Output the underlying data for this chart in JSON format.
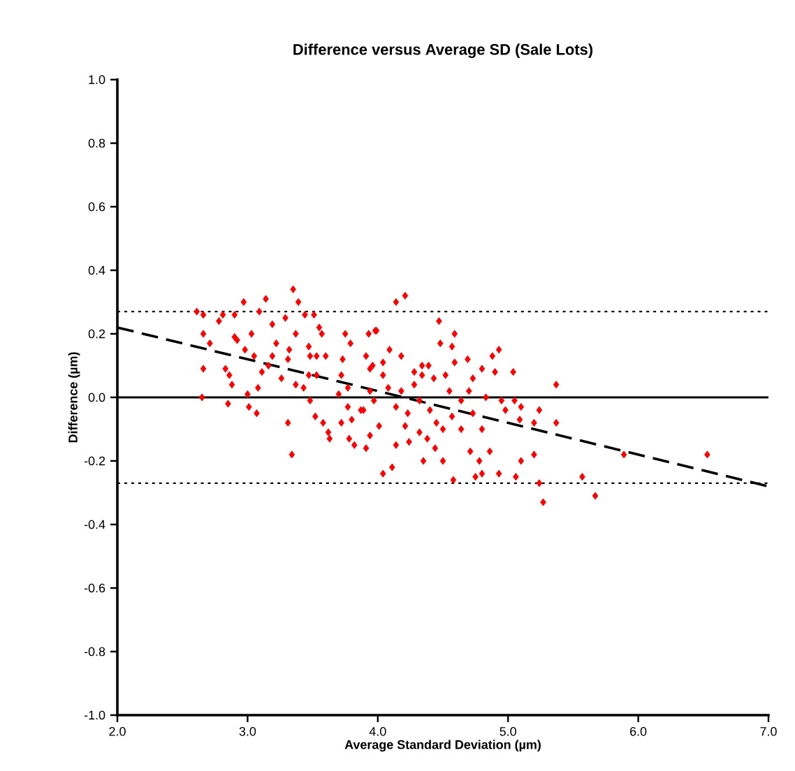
{
  "chart_data": {
    "type": "scatter",
    "title": "Difference versus Average SD (Sale Lots)",
    "xlabel": "Average Standard Deviation (µm)",
    "ylabel": "Difference (µm)",
    "xlim": [
      2,
      7
    ],
    "ylim": [
      -1,
      1
    ],
    "xticks": [
      {
        "value": 2,
        "label": "2.0"
      },
      {
        "value": 3,
        "label": "3.0"
      },
      {
        "value": 4,
        "label": "4.0"
      },
      {
        "value": 5,
        "label": "5.0"
      },
      {
        "value": 6,
        "label": "6.0"
      },
      {
        "value": 7,
        "label": "7.0"
      }
    ],
    "yticks": [
      {
        "value": -1,
        "label": "-1.0"
      },
      {
        "value": -0.8,
        "label": "-0.8"
      },
      {
        "value": -0.6,
        "label": "-0.6"
      },
      {
        "value": -0.4,
        "label": "-0.4"
      },
      {
        "value": -0.2,
        "label": "-0.2"
      },
      {
        "value": 0,
        "label": "0.0"
      },
      {
        "value": 0.2,
        "label": "0.2"
      },
      {
        "value": 0.4,
        "label": "0.4"
      },
      {
        "value": 0.6,
        "label": "0.6"
      },
      {
        "value": 0.8,
        "label": "0.8"
      },
      {
        "value": 1,
        "label": "1.0"
      }
    ],
    "ref_lines": [
      {
        "axis": "y",
        "value": 0,
        "color": "#000000",
        "line_style": "solid"
      },
      {
        "axis": "y",
        "value": 0.27,
        "color": "#000000",
        "line_style": "dotted"
      },
      {
        "axis": "y",
        "value": -0.27,
        "color": "#000000",
        "line_style": "dotted"
      }
    ],
    "series": [
      {
        "color": "#ff0000",
        "marker": "diamond",
        "x": [
          2.61,
          2.66,
          2.66,
          2.71,
          2.66,
          2.65,
          2.78,
          2.81,
          2.9,
          2.97,
          2.83,
          2.86,
          2.88,
          2.85,
          2.9,
          2.92,
          3.01,
          3.07,
          3.0,
          3.08,
          3.14,
          3.09,
          3.03,
          2.98,
          3.05,
          3.11,
          3.19,
          3.22,
          3.26,
          3.19,
          3.16,
          3.35,
          3.39,
          3.29,
          3.37,
          3.32,
          3.31,
          3.37,
          3.31,
          3.34,
          3.44,
          3.51,
          3.55,
          3.57,
          3.47,
          3.48,
          3.47,
          3.43,
          3.48,
          3.53,
          3.53,
          3.52,
          3.58,
          3.62,
          3.63,
          3.75,
          3.79,
          3.73,
          3.72,
          3.77,
          3.7,
          3.77,
          3.72,
          3.8,
          3.78,
          3.82,
          3.91,
          3.94,
          3.93,
          3.91,
          3.98,
          3.96,
          3.94,
          3.89,
          3.6,
          4.14,
          4.21,
          4.47,
          3.99,
          4.09,
          4.18,
          4.04,
          3.94,
          4.04,
          4.28,
          4.34,
          4.39,
          4.48,
          4.59,
          4.57,
          4.59,
          4.52,
          4.43,
          4.69,
          4.8,
          4.88,
          4.93,
          4.9,
          5.04,
          4.73,
          4.55,
          4.7,
          4.83,
          5.37,
          4.95,
          5.05,
          4.98,
          5.1,
          5.24,
          5.2,
          5.37,
          5.09,
          4.8,
          4.73,
          4.64,
          4.57,
          4.45,
          4.4,
          4.5,
          4.64,
          4.32,
          4.38,
          4.44,
          4.5,
          4.35,
          4.71,
          4.86,
          4.78,
          4.8,
          4.75,
          4.93,
          5.06,
          5.1,
          5.2,
          5.24,
          4.58,
          4.04,
          4.11,
          4.24,
          4.14,
          4.01,
          4.21,
          4.14,
          4.23,
          4.32,
          4.18,
          4.08,
          3.97,
          3.87,
          4.34,
          4.28,
          5.89,
          6.53,
          5.57,
          5.67,
          5.27
        ],
        "values": [
          0.27,
          0.26,
          0.2,
          0.17,
          0.09,
          0.0,
          0.24,
          0.26,
          0.26,
          0.3,
          0.09,
          0.07,
          0.04,
          -0.02,
          0.19,
          0.18,
          -0.03,
          -0.05,
          0.01,
          0.03,
          0.31,
          0.27,
          0.2,
          0.15,
          0.13,
          0.08,
          0.23,
          0.17,
          0.06,
          0.13,
          0.1,
          0.34,
          0.3,
          0.25,
          0.2,
          0.15,
          0.12,
          0.04,
          -0.08,
          -0.18,
          0.26,
          0.26,
          0.22,
          0.2,
          0.16,
          0.13,
          0.07,
          0.03,
          -0.01,
          0.13,
          0.07,
          -0.06,
          -0.08,
          -0.11,
          -0.13,
          0.2,
          0.17,
          0.12,
          0.07,
          0.03,
          0.01,
          -0.03,
          -0.08,
          -0.07,
          -0.13,
          -0.15,
          -0.16,
          -0.12,
          0.2,
          0.13,
          0.21,
          0.1,
          0.02,
          -0.04,
          0.13,
          0.3,
          0.32,
          0.24,
          0.21,
          0.15,
          0.13,
          0.11,
          0.09,
          0.07,
          0.08,
          0.1,
          0.1,
          0.17,
          0.2,
          0.16,
          0.11,
          0.07,
          0.06,
          0.12,
          0.09,
          0.13,
          0.15,
          0.08,
          0.08,
          0.06,
          0.02,
          0.02,
          0.0,
          0.04,
          -0.01,
          -0.01,
          -0.04,
          -0.03,
          -0.04,
          -0.08,
          -0.08,
          -0.07,
          -0.1,
          -0.05,
          -0.01,
          -0.06,
          -0.08,
          -0.04,
          -0.1,
          -0.1,
          -0.11,
          -0.13,
          -0.16,
          -0.2,
          -0.2,
          -0.17,
          -0.17,
          -0.2,
          -0.24,
          -0.25,
          -0.24,
          -0.25,
          -0.2,
          -0.18,
          -0.27,
          -0.26,
          -0.24,
          -0.22,
          -0.14,
          -0.15,
          -0.09,
          -0.09,
          -0.03,
          -0.05,
          -0.01,
          0.02,
          0.03,
          -0.01,
          -0.04,
          0.07,
          0.04,
          -0.18,
          -0.18,
          -0.25,
          -0.31,
          -0.33
        ]
      },
      {
        "type": "line",
        "color": "#000000",
        "line_style": "dashed",
        "marker": "none",
        "x": [
          2,
          7
        ],
        "values": [
          0.22,
          -0.28
        ]
      }
    ]
  }
}
